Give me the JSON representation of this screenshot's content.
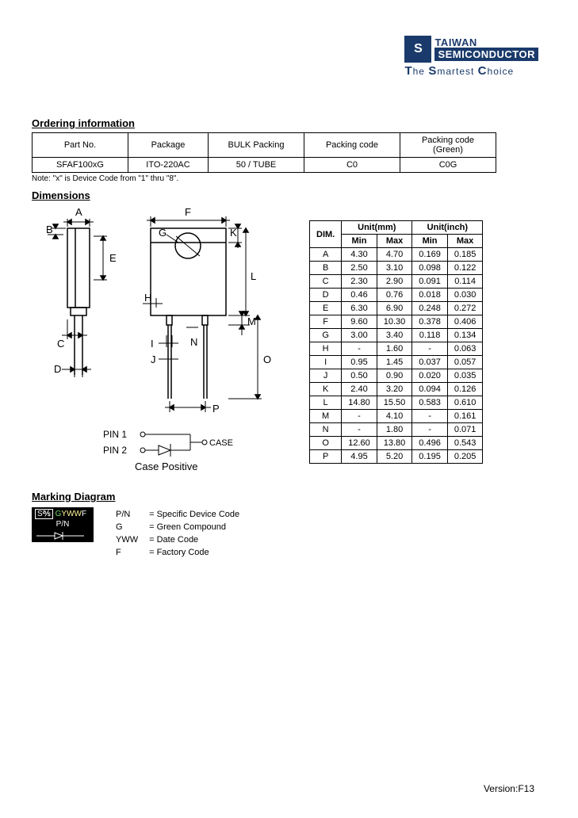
{
  "logo": {
    "icon_text": "S",
    "line1": "TAIWAN",
    "line2": "SEMICONDUCTOR",
    "tagline_parts": [
      "T",
      "he ",
      "S",
      "martest ",
      "C",
      "hoice"
    ]
  },
  "ordering": {
    "title": "Ordering information",
    "headers": [
      "Part No.",
      "Package",
      "BULK Packing",
      "Packing code",
      "Packing code (Green)"
    ],
    "row": [
      "SFAF100xG",
      "ITO-220AC",
      "50 / TUBE",
      "C0",
      "C0G"
    ],
    "note": "Note: \"x\" is  Device Code from  \"1\" thru \"8\"."
  },
  "dimensions": {
    "title": "Dimensions",
    "header_dim": "DIM.",
    "header_mm": "Unit(mm)",
    "header_in": "Unit(inch)",
    "sub_min": "Min",
    "sub_max": "Max",
    "rows": [
      {
        "d": "A",
        "mmMin": "4.30",
        "mmMax": "4.70",
        "inMin": "0.169",
        "inMax": "0.185"
      },
      {
        "d": "B",
        "mmMin": "2.50",
        "mmMax": "3.10",
        "inMin": "0.098",
        "inMax": "0.122"
      },
      {
        "d": "C",
        "mmMin": "2.30",
        "mmMax": "2.90",
        "inMin": "0.091",
        "inMax": "0.114"
      },
      {
        "d": "D",
        "mmMin": "0.46",
        "mmMax": "0.76",
        "inMin": "0.018",
        "inMax": "0.030"
      },
      {
        "d": "E",
        "mmMin": "6.30",
        "mmMax": "6.90",
        "inMin": "0.248",
        "inMax": "0.272"
      },
      {
        "d": "F",
        "mmMin": "9.60",
        "mmMax": "10.30",
        "inMin": "0.378",
        "inMax": "0.406"
      },
      {
        "d": "G",
        "mmMin": "3.00",
        "mmMax": "3.40",
        "inMin": "0.118",
        "inMax": "0.134"
      },
      {
        "d": "H",
        "mmMin": "-",
        "mmMax": "1.60",
        "inMin": "-",
        "inMax": "0.063"
      },
      {
        "d": "I",
        "mmMin": "0.95",
        "mmMax": "1.45",
        "inMin": "0.037",
        "inMax": "0.057"
      },
      {
        "d": "J",
        "mmMin": "0.50",
        "mmMax": "0.90",
        "inMin": "0.020",
        "inMax": "0.035"
      },
      {
        "d": "K",
        "mmMin": "2.40",
        "mmMax": "3.20",
        "inMin": "0.094",
        "inMax": "0.126"
      },
      {
        "d": "L",
        "mmMin": "14.80",
        "mmMax": "15.50",
        "inMin": "0.583",
        "inMax": "0.610"
      },
      {
        "d": "M",
        "mmMin": "-",
        "mmMax": "4.10",
        "inMin": "-",
        "inMax": "0.161"
      },
      {
        "d": "N",
        "mmMin": "-",
        "mmMax": "1.80",
        "inMin": "-",
        "inMax": "0.071"
      },
      {
        "d": "O",
        "mmMin": "12.60",
        "mmMax": "13.80",
        "inMin": "0.496",
        "inMax": "0.543"
      },
      {
        "d": "P",
        "mmMin": "4.95",
        "mmMax": "5.20",
        "inMin": "0.195",
        "inMax": "0.205"
      }
    ],
    "labels": [
      "A",
      "B",
      "C",
      "D",
      "E",
      "F",
      "G",
      "H",
      "I",
      "J",
      "K",
      "L",
      "M",
      "N",
      "O",
      "P"
    ],
    "pin1": "PIN 1",
    "pin2": "PIN 2",
    "case": "CASE",
    "case_positive": "Case Positive"
  },
  "marking": {
    "title": "Marking Diagram",
    "chip_row1_a": "S",
    "chip_row1_b": "G",
    "chip_row1_c": "YWW",
    "chip_row1_d": "F",
    "chip_row2": "P/N",
    "legend": [
      {
        "k": "P/N",
        "v": "= Specific Device Code"
      },
      {
        "k": "G",
        "v": "= Green Compound"
      },
      {
        "k": "YWW",
        "v": "= Date Code"
      },
      {
        "k": "F",
        "v": "= Factory Code"
      }
    ]
  },
  "version": "Version:F13"
}
